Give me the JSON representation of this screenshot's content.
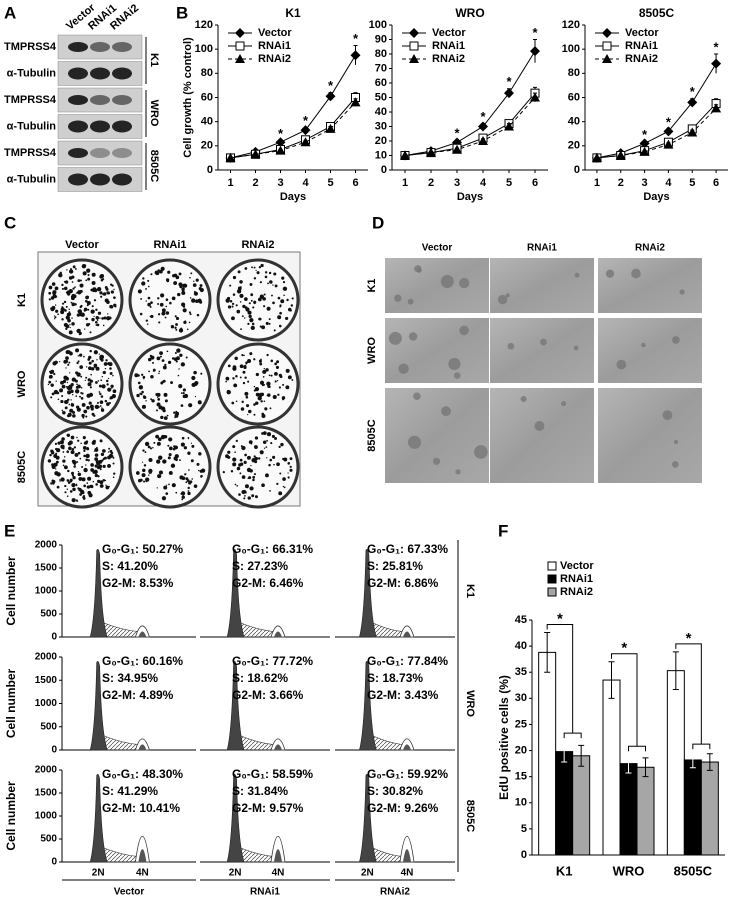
{
  "panel_labels": [
    "A",
    "B",
    "C",
    "D",
    "E",
    "F"
  ],
  "panel_a": {
    "columns": [
      "Vector",
      "RNAi1",
      "RNAi2"
    ],
    "bands": [
      "TMPRSS4",
      "α-Tubulin",
      "TMPRSS4",
      "α-Tubulin",
      "TMPRSS4",
      "α-Tubulin"
    ],
    "cell_lines": [
      "K1",
      "WRO",
      "8505C"
    ]
  },
  "panel_c": {
    "columns": [
      "Vector",
      "RNAi1",
      "RNAi2"
    ],
    "rows": [
      "K1",
      "WRO",
      "8505C"
    ]
  },
  "panel_d": {
    "columns": [
      "Vector",
      "RNAi1",
      "RNAi2"
    ],
    "rows": [
      "K1",
      "WRO",
      "8505C"
    ]
  },
  "panel_e": {
    "y_label": "Cell number",
    "ylim": [
      0,
      2000
    ],
    "yticks": [
      0,
      500,
      1000,
      1500,
      2000
    ],
    "x_labels": [
      "2N",
      "4N"
    ],
    "columns": [
      "Vector",
      "RNAi1",
      "RNAi2"
    ],
    "rows": [
      "K1",
      "WRO",
      "8505C"
    ],
    "stats": [
      [
        [
          "G₀-G₁: 50.27%",
          "S: 41.20%",
          "G2-M: 8.53%"
        ],
        [
          "G₀-G₁: 66.31%",
          "S: 27.23%",
          "G2-M: 6.46%"
        ],
        [
          "G₀-G₁: 67.33%",
          "S: 25.81%",
          "G2-M: 6.86%"
        ]
      ],
      [
        [
          "G₀-G₁: 60.16%",
          "S: 34.95%",
          "G2-M: 4.89%"
        ],
        [
          "G₀-G₁: 77.72%",
          "S: 18.62%",
          "G2-M: 3.66%"
        ],
        [
          "G₀-G₁: 77.84%",
          "S: 18.73%",
          "G2-M: 3.43%"
        ]
      ],
      [
        [
          "G₀-G₁: 48.30%",
          "S: 41.29%",
          "G2-M: 10.41%"
        ],
        [
          "G₀-G₁: 58.59%",
          "S: 31.84%",
          "G2-M: 9.57%"
        ],
        [
          "G₀-G₁: 59.92%",
          "S: 30.82%",
          "G2-M: 9.26%"
        ]
      ]
    ]
  },
  "chart_data": [
    {
      "type": "line",
      "title": "K1",
      "x_label": "Days",
      "y_label": "Cell growth (% control)",
      "x": [
        1,
        2,
        3,
        4,
        5,
        6
      ],
      "xlim": [
        0.5,
        6.5
      ],
      "xticks": [
        1,
        2,
        3,
        4,
        5,
        6
      ],
      "ylim": [
        0,
        120
      ],
      "yticks": [
        0,
        20,
        40,
        60,
        80,
        100,
        120
      ],
      "legend": "top-left",
      "significance": "*",
      "significant_x": [
        3,
        4,
        5,
        6
      ],
      "series": [
        {
          "name": "Vector",
          "color": "#000000",
          "marker": "diamond",
          "dash": false,
          "values": [
            10,
            15,
            23,
            33,
            61,
            95
          ],
          "errors": [
            0.5,
            1,
            1.5,
            2,
            3,
            8
          ]
        },
        {
          "name": "RNAi1",
          "color": "#000000",
          "marker": "square",
          "dash": false,
          "values": [
            10,
            13,
            17,
            25,
            36,
            60
          ],
          "errors": [
            0.5,
            1,
            1,
            1.5,
            2,
            4
          ]
        },
        {
          "name": "RNAi2",
          "color": "#000000",
          "marker": "triangle",
          "dash": true,
          "values": [
            10,
            13,
            16,
            23,
            34,
            56
          ],
          "errors": [
            0.5,
            0.8,
            1,
            1.5,
            2,
            3
          ]
        }
      ]
    },
    {
      "type": "line",
      "title": "WRO",
      "x_label": "Days",
      "x": [
        1,
        2,
        3,
        4,
        5,
        6
      ],
      "xlim": [
        0.5,
        6.5
      ],
      "xticks": [
        1,
        2,
        3,
        4,
        5,
        6
      ],
      "ylim": [
        0,
        100
      ],
      "yticks": [
        0,
        10,
        20,
        30,
        40,
        50,
        60,
        70,
        80,
        90,
        100
      ],
      "legend": "top-left",
      "significance": "*",
      "significant_x": [
        3,
        4,
        5,
        6
      ],
      "series": [
        {
          "name": "Vector",
          "color": "#000000",
          "marker": "diamond",
          "dash": false,
          "values": [
            10,
            13,
            19,
            30,
            53,
            82
          ],
          "errors": [
            0.5,
            1,
            1.5,
            2,
            3,
            8
          ]
        },
        {
          "name": "RNAi1",
          "color": "#000000",
          "marker": "square",
          "dash": false,
          "values": [
            10,
            12,
            15,
            22,
            32,
            53
          ],
          "errors": [
            0.5,
            0.8,
            1,
            1.5,
            2,
            4
          ]
        },
        {
          "name": "RNAi2",
          "color": "#000000",
          "marker": "triangle",
          "dash": true,
          "values": [
            10,
            12,
            14,
            20,
            30,
            50
          ],
          "errors": [
            0.5,
            0.8,
            1,
            1.5,
            2,
            3
          ]
        }
      ]
    },
    {
      "type": "line",
      "title": "8505C",
      "x_label": "Days",
      "x": [
        1,
        2,
        3,
        4,
        5,
        6
      ],
      "xlim": [
        0.5,
        6.5
      ],
      "xticks": [
        1,
        2,
        3,
        4,
        5,
        6
      ],
      "ylim": [
        0,
        120
      ],
      "yticks": [
        0,
        20,
        40,
        60,
        80,
        100,
        120
      ],
      "legend": "top-left",
      "significance": "*",
      "significant_x": [
        3,
        4,
        5,
        6
      ],
      "series": [
        {
          "name": "Vector",
          "color": "#000000",
          "marker": "diamond",
          "dash": false,
          "values": [
            10,
            14,
            22,
            32,
            56,
            88
          ],
          "errors": [
            0.5,
            1,
            1.5,
            2,
            3,
            8
          ]
        },
        {
          "name": "RNAi1",
          "color": "#000000",
          "marker": "square",
          "dash": false,
          "values": [
            10,
            12,
            16,
            23,
            34,
            55
          ],
          "errors": [
            0.5,
            0.8,
            1,
            1.5,
            2,
            4
          ]
        },
        {
          "name": "RNAi2",
          "color": "#000000",
          "marker": "triangle",
          "dash": true,
          "values": [
            10,
            12,
            15,
            21,
            31,
            51
          ],
          "errors": [
            0.5,
            0.8,
            1,
            1.5,
            2,
            3
          ]
        }
      ]
    },
    {
      "type": "bar",
      "y_label": "EdU positive cells (%)",
      "categories": [
        "K1",
        "WRO",
        "8505C"
      ],
      "ylim": [
        0,
        45
      ],
      "yticks": [
        0,
        5,
        10,
        15,
        20,
        25,
        30,
        35,
        40,
        45
      ],
      "legend": "top-left",
      "significance": "*",
      "series": [
        {
          "name": "Vector",
          "color": "#ffffff",
          "values": [
            38.8,
            33.5,
            35.3
          ],
          "errors": [
            3.8,
            3.5,
            3.6
          ]
        },
        {
          "name": "RNAi1",
          "color": "#000000",
          "values": [
            19.8,
            17.5,
            18.2
          ],
          "errors": [
            2,
            1.8,
            1.5
          ]
        },
        {
          "name": "RNAi2",
          "color": "#a6a6a6",
          "values": [
            19,
            16.8,
            17.8
          ],
          "errors": [
            2,
            1.8,
            1.6
          ]
        }
      ]
    }
  ]
}
